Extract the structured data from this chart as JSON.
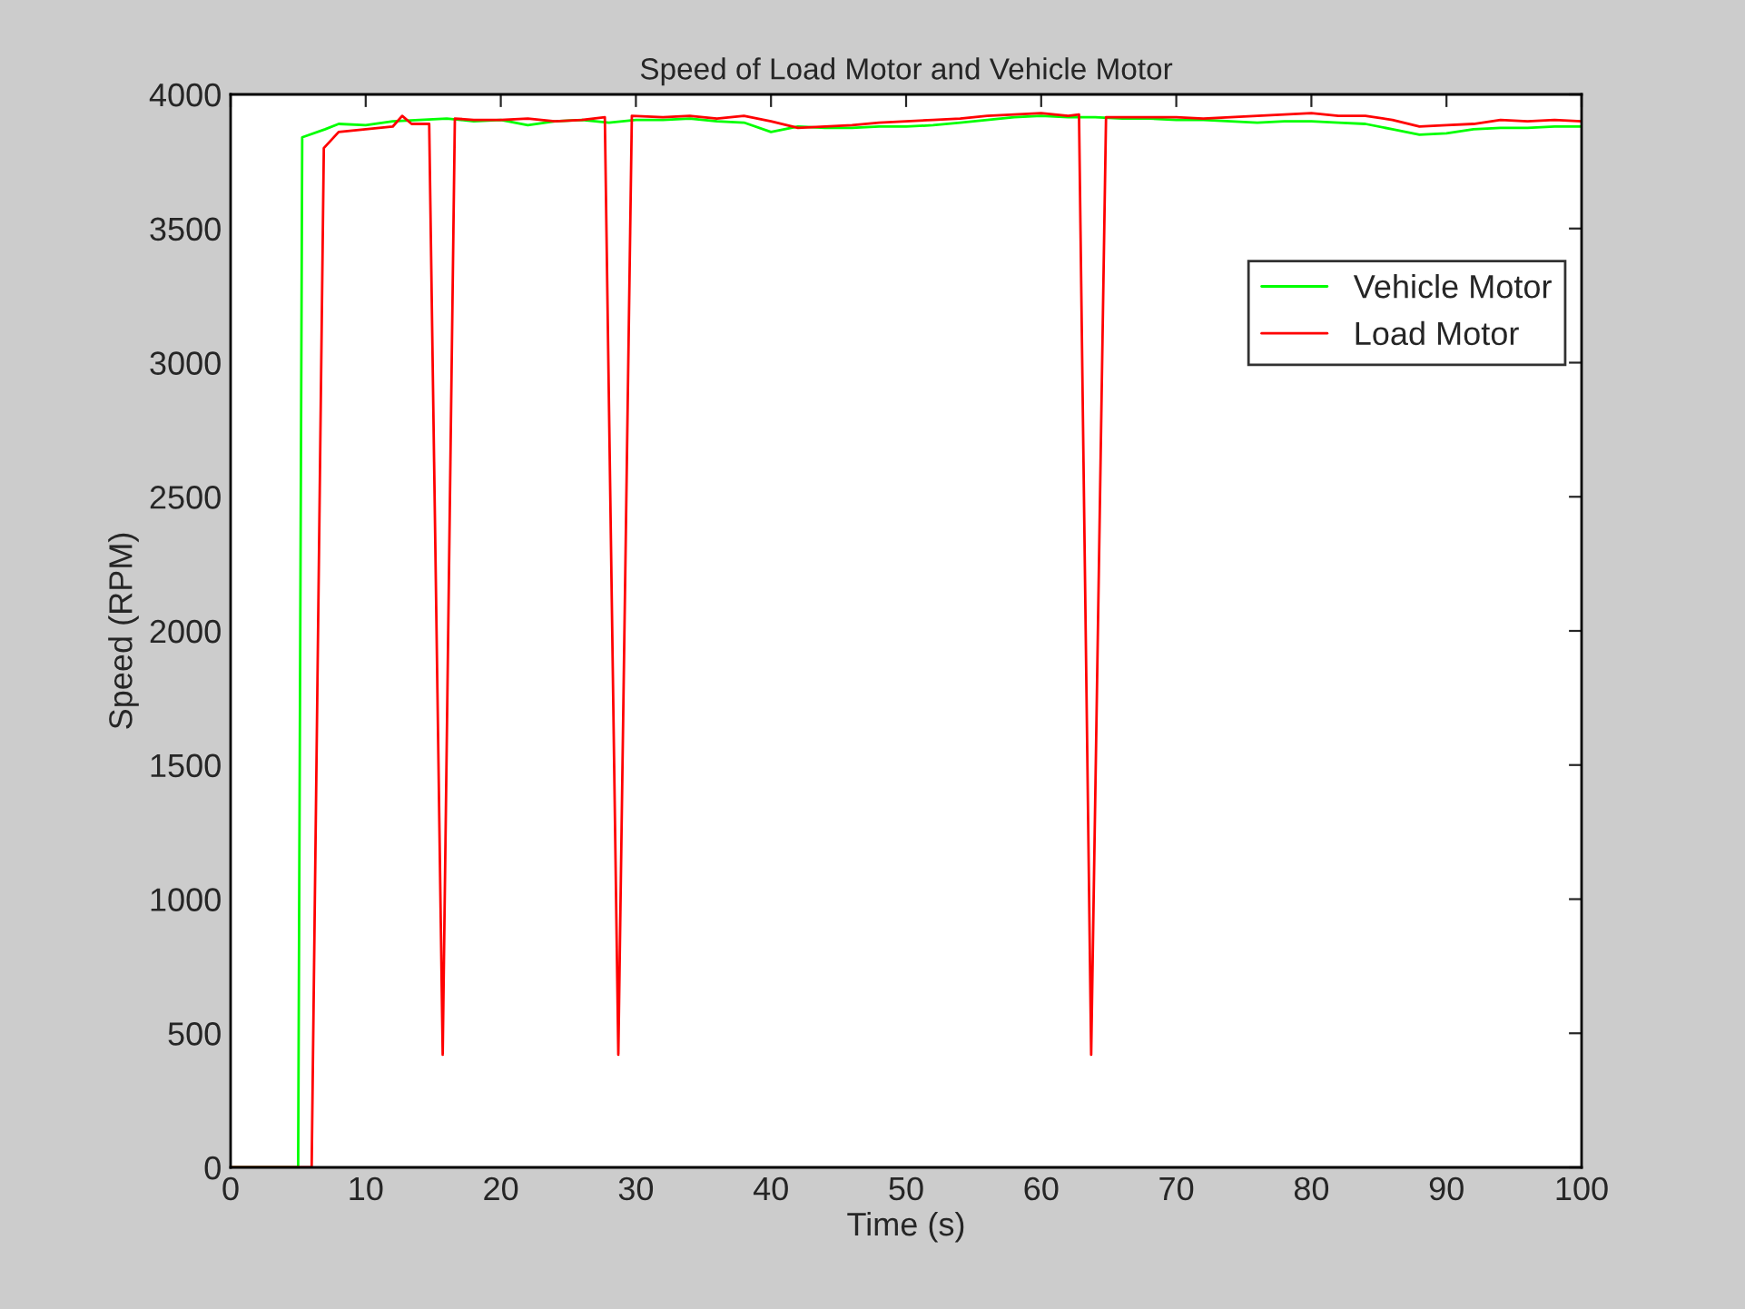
{
  "chart_data": {
    "type": "line",
    "title": "Speed of Load Motor and Vehicle Motor",
    "xlabel": "Time (s)",
    "ylabel": "Speed (RPM)",
    "xlim": [
      0,
      100
    ],
    "xticks": [
      0,
      10,
      20,
      30,
      40,
      50,
      60,
      70,
      80,
      90,
      100
    ],
    "ylim": [
      0,
      4000
    ],
    "yticks": [
      0,
      500,
      1000,
      1500,
      2000,
      2500,
      3000,
      3500,
      4000
    ],
    "grid": false,
    "legend": "top right",
    "marker": "none",
    "line_style": "solid",
    "series": [
      {
        "name": "Vehicle Motor",
        "color": "#00ff00",
        "x": [
          0,
          5,
          5.3,
          7,
          8,
          10,
          12,
          14,
          16,
          18,
          20,
          22,
          24,
          26,
          28,
          30,
          32,
          34,
          36,
          38,
          40,
          42,
          44,
          46,
          48,
          50,
          52,
          54,
          56,
          58,
          60,
          62,
          64,
          66,
          68,
          70,
          72,
          74,
          76,
          78,
          80,
          82,
          84,
          86,
          88,
          90,
          92,
          94,
          96,
          98,
          100
        ],
        "values": [
          0,
          0,
          3840,
          3870,
          3890,
          3885,
          3900,
          3905,
          3910,
          3900,
          3905,
          3885,
          3900,
          3905,
          3895,
          3905,
          3905,
          3910,
          3900,
          3895,
          3860,
          3880,
          3875,
          3875,
          3880,
          3880,
          3885,
          3895,
          3905,
          3915,
          3920,
          3915,
          3915,
          3910,
          3910,
          3905,
          3905,
          3900,
          3895,
          3900,
          3900,
          3895,
          3890,
          3870,
          3850,
          3855,
          3870,
          3875,
          3875,
          3880,
          3880
        ]
      },
      {
        "name": "Load Motor",
        "color": "#ff0000",
        "x": [
          0,
          6,
          6.9,
          8,
          10,
          12,
          12.7,
          13.4,
          14.7,
          15.7,
          16.6,
          18,
          20,
          22,
          24,
          26,
          27.7,
          28.7,
          29.7,
          32,
          34,
          36,
          38,
          40,
          42,
          44,
          46,
          48,
          50,
          52,
          54,
          56,
          58,
          60,
          62,
          62.8,
          63.7,
          64.8,
          66,
          68,
          70,
          72,
          74,
          76,
          78,
          80,
          82,
          84,
          86,
          88,
          90,
          92,
          94,
          96,
          98,
          100
        ],
        "values": [
          0,
          0,
          3800,
          3860,
          3870,
          3880,
          3920,
          3890,
          3890,
          420,
          3910,
          3905,
          3905,
          3910,
          3900,
          3905,
          3915,
          420,
          3920,
          3915,
          3920,
          3910,
          3920,
          3900,
          3875,
          3880,
          3885,
          3895,
          3900,
          3905,
          3910,
          3920,
          3925,
          3930,
          3920,
          3925,
          420,
          3915,
          3915,
          3915,
          3915,
          3910,
          3915,
          3920,
          3925,
          3930,
          3920,
          3920,
          3905,
          3880,
          3885,
          3890,
          3905,
          3900,
          3905,
          3900
        ]
      }
    ]
  }
}
